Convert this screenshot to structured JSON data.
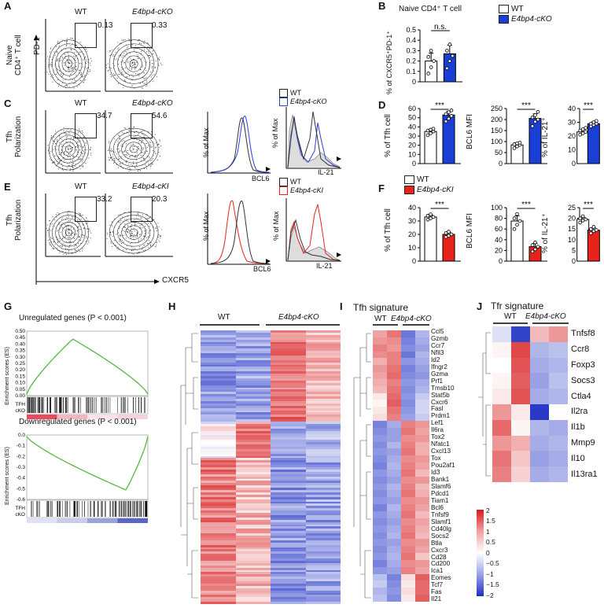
{
  "panels": {
    "A": "A",
    "B": "B",
    "C": "C",
    "D": "D",
    "E": "E",
    "F": "F",
    "G": "G",
    "H": "H",
    "I": "I",
    "J": "J"
  },
  "flow_labels": {
    "wt": "WT",
    "cko": "E4bp4-cKO",
    "cki": "E4bp4-cKI",
    "pd1": "PD-1",
    "cxcr5": "CXCR5",
    "naive_row": [
      "Naive",
      "CD4⁺ T cell"
    ],
    "tfh_row": [
      "Tfh",
      "Polarization"
    ],
    "gate_values": {
      "a_wt": "0.13",
      "a_cko": "0.33",
      "c_wt": "34.7",
      "c_cko": "54.6",
      "e_wt": "33.2",
      "e_cki": "20.3"
    }
  },
  "histogram_labels": {
    "pct_max": "% of Max",
    "bcl6": "BCL6",
    "il21": "IL-21"
  },
  "panel_b": {
    "title": "Naive CD4⁺ T cell",
    "ylabel": "% of CXCR5⁺PD-1⁺",
    "yticks": [
      "0",
      "0.1",
      "0.2",
      "0.3",
      "0.4",
      "0.5"
    ],
    "sig": "n.s."
  },
  "legend_cko": {
    "wt": "WT",
    "ko": "E4bp4-cKO"
  },
  "legend_cki": {
    "wt": "WT",
    "ki": "E4bp4-cKI"
  },
  "panel_d": {
    "ylabels": [
      "% of Tfh cell",
      "BCL6 MFI",
      "% of IL-21⁺"
    ],
    "yticks1": [
      "0",
      "10",
      "20",
      "30",
      "40",
      "50",
      "60"
    ],
    "yticks2": [
      "0",
      "50",
      "100",
      "150",
      "200",
      "250"
    ],
    "yticks3": [
      "0",
      "10",
      "20",
      "30",
      "40"
    ],
    "sig": "***"
  },
  "panel_f": {
    "ylabels": [
      "% of Tfh cell",
      "BCL6 MFI",
      "% of IL-21⁺"
    ],
    "yticks1": [
      "0",
      "10",
      "20",
      "30",
      "40"
    ],
    "yticks2": [
      "0",
      "20",
      "40",
      "60",
      "80",
      "100"
    ],
    "yticks3": [
      "0",
      "5",
      "10",
      "15",
      "20",
      "25"
    ],
    "sig": "***"
  },
  "panel_g": {
    "up_title": "Unregulated genes (P < 0.001)",
    "down_title": "Downregulated genes (P < 0.001)",
    "ylabel": "Enrichment scores (ES)",
    "up_ticks": [
      "0.50",
      "0.45",
      "0.40",
      "0.35",
      "0.30",
      "0.25",
      "0.20",
      "0.15",
      "0.10",
      "0.05",
      "0.00"
    ],
    "down_ticks": [
      "0.0",
      "-0.1",
      "-0.2",
      "-0.3",
      "-0.4",
      "-0.5",
      "-0.6"
    ],
    "tfh": "TFH",
    "cko": "cKO"
  },
  "panel_h": {
    "wt": "WT",
    "cko": "E4bp4-cKO"
  },
  "panel_i": {
    "title": "Tfh signature",
    "wt": "WT",
    "cko": "E4bp4-cKO",
    "genes": [
      "Ccl5",
      "Gzmb",
      "Ccr7",
      "Nfil3",
      "Id2",
      "Ifngr2",
      "Gzma",
      "Prf1",
      "Tmsb10",
      "Stat5b",
      "Cxcr6",
      "Fasl",
      "Prdm1",
      "Lef1",
      "Il6ra",
      "Tox2",
      "Nfatc1",
      "Cxcl13",
      "Tox",
      "Pou2af1",
      "Id3",
      "Bank1",
      "Slamf6",
      "Pdcd1",
      "Tiam1",
      "Bcl6",
      "Tnfsf9",
      "Slamf1",
      "Cd40lg",
      "Socs2",
      "Btla",
      "Cxcr3",
      "Cd28",
      "Cd200",
      "Ica1",
      "Eomes",
      "Tcf7",
      "Fas",
      "Il21"
    ]
  },
  "panel_j": {
    "title": "Tfr signature",
    "wt": "WT",
    "cko": "E4bp4-cKO",
    "genes": [
      "Tnfsf8",
      "Ccr8",
      "Foxp3",
      "Socs3",
      "Ctla4",
      "Il2ra",
      "Il1b",
      "Mmp9",
      "Il10",
      "Il13ra1"
    ]
  },
  "colorbar": {
    "ticks": [
      "2",
      "1.5",
      "1",
      "0.5",
      "0",
      "−0.5",
      "−1",
      "−1.5",
      "−2"
    ]
  },
  "colors": {
    "blue": "#1a3fd6",
    "red": "#e8231c",
    "green": "#55b83a"
  },
  "chart_data": [
    {
      "type": "bar",
      "panel": "B",
      "title": "Naive CD4⁺ T cell",
      "ylabel": "% of CXCR5⁺PD-1⁺",
      "categories": [
        "WT",
        "E4bp4-cKO"
      ],
      "values": [
        0.2,
        0.27
      ],
      "ylim": [
        0,
        0.5
      ],
      "points": [
        [
          0.08,
          0.14,
          0.2,
          0.24,
          0.3
        ],
        [
          0.13,
          0.2,
          0.25,
          0.3,
          0.36
        ]
      ]
    },
    {
      "type": "bar",
      "panel": "D1",
      "ylabel": "% of Tfh cell",
      "categories": [
        "WT",
        "E4bp4-cKO"
      ],
      "values": [
        35,
        53
      ],
      "ylim": [
        0,
        60
      ],
      "points": [
        [
          31,
          33,
          35,
          36,
          37,
          38
        ],
        [
          46,
          49,
          52,
          54,
          56,
          58
        ]
      ]
    },
    {
      "type": "bar",
      "panel": "D2",
      "ylabel": "BCL6 MFI",
      "categories": [
        "WT",
        "E4bp4-cKO"
      ],
      "values": [
        85,
        205
      ],
      "ylim": [
        0,
        250
      ],
      "points": [
        [
          70,
          78,
          85,
          88,
          92,
          95
        ],
        [
          170,
          190,
          200,
          210,
          220,
          235
        ]
      ]
    },
    {
      "type": "bar",
      "panel": "D3",
      "ylabel": "% of IL-21⁺",
      "categories": [
        "WT",
        "E4bp4-cKO"
      ],
      "values": [
        23,
        29
      ],
      "ylim": [
        0,
        40
      ],
      "points": [
        [
          21,
          22,
          23,
          24,
          25,
          26
        ],
        [
          27,
          28,
          29,
          29,
          30,
          31
        ]
      ]
    },
    {
      "type": "bar",
      "panel": "F1",
      "ylabel": "% of Tfh cell",
      "categories": [
        "WT",
        "E4bp4-cKI"
      ],
      "values": [
        33,
        20
      ],
      "ylim": [
        0,
        40
      ],
      "points": [
        [
          31,
          32,
          33,
          34,
          35
        ],
        [
          18,
          19,
          20,
          21,
          22
        ]
      ]
    },
    {
      "type": "bar",
      "panel": "F2",
      "ylabel": "BCL6 MFI",
      "categories": [
        "WT",
        "E4bp4-cKI"
      ],
      "values": [
        75,
        27
      ],
      "ylim": [
        0,
        100
      ],
      "points": [
        [
          60,
          68,
          75,
          80,
          88
        ],
        [
          18,
          22,
          27,
          30,
          35
        ]
      ]
    },
    {
      "type": "bar",
      "panel": "F3",
      "ylabel": "% of IL-21⁺",
      "categories": [
        "WT",
        "E4bp4-cKI"
      ],
      "values": [
        19.5,
        14.5
      ],
      "ylim": [
        0,
        25
      ],
      "points": [
        [
          18,
          19,
          19.5,
          20,
          21
        ],
        [
          13,
          14,
          14.5,
          15,
          16
        ]
      ]
    },
    {
      "type": "heatmap",
      "panel": "I",
      "columns": [
        "WT",
        "WT",
        "E4bp4-cKO",
        "E4bp4-cKO"
      ],
      "rows": [
        "Ccl5",
        "Gzmb",
        "Ccr7",
        "Nfil3",
        "Id2",
        "Ifngr2",
        "Gzma",
        "Prf1",
        "Tmsb10",
        "Stat5b",
        "Cxcr6",
        "Fasl",
        "Prdm1",
        "Lef1",
        "Il6ra",
        "Tox2",
        "Nfatc1",
        "Cxcl13",
        "Tox",
        "Pou2af1",
        "Id3",
        "Bank1",
        "Slamf6",
        "Pdcd1",
        "Tiam1",
        "Bcl6",
        "Tnfsf9",
        "Slamf1",
        "Cd40lg",
        "Socs2",
        "Btla",
        "Cxcr3",
        "Cd28",
        "Cd200",
        "Ica1",
        "Eomes",
        "Tcf7",
        "Fas",
        "Il21"
      ],
      "values": [
        [
          0.8,
          1.2,
          -1.3,
          -0.7
        ],
        [
          0.9,
          1.0,
          -1.2,
          -0.8
        ],
        [
          1.1,
          0.9,
          -1.1,
          -0.9
        ],
        [
          1.0,
          1.1,
          -1.3,
          -0.7
        ],
        [
          0.7,
          1.1,
          -1.0,
          -0.8
        ],
        [
          0.9,
          1.2,
          -1.2,
          -0.9
        ],
        [
          0.8,
          1.3,
          -1.1,
          -1.0
        ],
        [
          0.7,
          1.1,
          -1.0,
          -0.8
        ],
        [
          0.6,
          1.2,
          -1.1,
          -0.7
        ],
        [
          0.2,
          1.3,
          -1.0,
          -0.5
        ],
        [
          0.1,
          1.4,
          -1.1,
          -0.4
        ],
        [
          0.2,
          1.2,
          -1.0,
          -0.4
        ],
        [
          0.3,
          1.1,
          -0.9,
          -0.5
        ],
        [
          -1.2,
          -0.8,
          1.1,
          0.9
        ],
        [
          -1.1,
          -0.9,
          1.2,
          0.8
        ],
        [
          -1.0,
          -0.9,
          1.0,
          0.9
        ],
        [
          -1.1,
          -0.7,
          1.1,
          0.7
        ],
        [
          -1.0,
          -0.9,
          1.2,
          0.7
        ],
        [
          -1.1,
          -0.8,
          1.0,
          0.9
        ],
        [
          -1.2,
          -0.7,
          1.1,
          0.8
        ],
        [
          -1.0,
          -0.8,
          1.2,
          0.6
        ],
        [
          -1.1,
          -0.9,
          1.0,
          0.9
        ],
        [
          -1.0,
          -0.7,
          1.1,
          0.6
        ],
        [
          -1.1,
          -0.8,
          1.2,
          0.7
        ],
        [
          -1.0,
          -0.9,
          1.0,
          0.9
        ],
        [
          -1.2,
          -0.7,
          1.1,
          0.8
        ],
        [
          -1.0,
          -0.8,
          1.2,
          0.6
        ],
        [
          -1.1,
          -0.9,
          1.0,
          0.8
        ],
        [
          -1.0,
          -0.8,
          1.1,
          0.7
        ],
        [
          -1.1,
          -0.7,
          1.2,
          0.6
        ],
        [
          -1.0,
          -0.9,
          1.0,
          0.9
        ],
        [
          -1.1,
          -0.8,
          1.1,
          0.8
        ],
        [
          -1.0,
          -0.7,
          1.2,
          0.5
        ],
        [
          -1.2,
          -0.8,
          1.0,
          0.9
        ],
        [
          -1.0,
          -0.9,
          1.1,
          0.8
        ],
        [
          -0.6,
          -1.2,
          0.3,
          1.4
        ],
        [
          -0.5,
          -1.1,
          0.2,
          1.3
        ],
        [
          -0.7,
          -1.0,
          0.3,
          1.3
        ],
        [
          -0.6,
          -1.1,
          0.2,
          1.4
        ]
      ]
    },
    {
      "type": "heatmap",
      "panel": "J",
      "columns": [
        "WT",
        "WT",
        "E4bp4-cKO",
        "E4bp4-cKO"
      ],
      "rows": [
        "Tnfsf8",
        "Ccr8",
        "Foxp3",
        "Socs3",
        "Ctla4",
        "Il2ra",
        "Il1b",
        "Mmp9",
        "Il10",
        "Il13ra1"
      ],
      "values": [
        [
          -0.3,
          -1.8,
          0.6,
          0.9
        ],
        [
          0.1,
          1.6,
          -0.7,
          -0.6
        ],
        [
          0.0,
          1.5,
          -0.8,
          -0.7
        ],
        [
          0.1,
          1.4,
          -0.9,
          -0.6
        ],
        [
          0.2,
          1.5,
          -0.8,
          -0.7
        ],
        [
          0.9,
          0.2,
          -1.9,
          0.0
        ],
        [
          1.3,
          0.1,
          -0.7,
          -0.8
        ],
        [
          0.9,
          0.7,
          -0.8,
          -0.7
        ],
        [
          1.2,
          0.5,
          -0.9,
          -0.8
        ],
        [
          1.1,
          0.4,
          -0.8,
          -0.7
        ]
      ]
    }
  ]
}
